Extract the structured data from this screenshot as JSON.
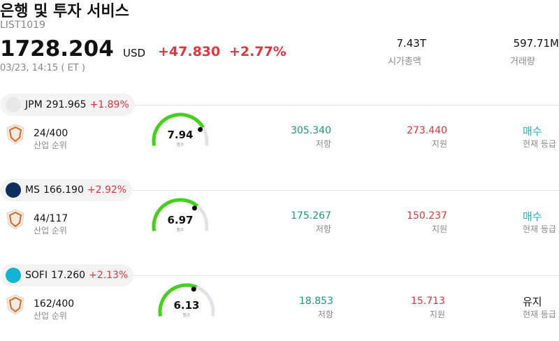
{
  "header": {
    "title": "은행 및 투자 서비스",
    "code": "LIST1019",
    "price": "1728.204",
    "currency": "USD",
    "change": "+47.830",
    "change_pct": "+2.77%",
    "time": "03/23, 14:15 ( ET )",
    "stats": [
      {
        "value": "7.43T",
        "label": "시가총액"
      },
      {
        "value": "597.71M",
        "label": "거래량"
      }
    ]
  },
  "items": [
    {
      "ticker": "JPM",
      "price": "291.965",
      "change": "+1.89%",
      "rank": "24/400",
      "rank_label": "산업 순위",
      "score": "7.94",
      "score_label": "점수",
      "resistance": "305.340",
      "resistance_label": "저항",
      "support": "273.440",
      "support_label": "지원",
      "rating": "매수",
      "rating_label": "현재 등급"
    },
    {
      "ticker": "MS",
      "price": "166.190",
      "change": "+2.92%",
      "rank": "44/117",
      "rank_label": "산업 순위",
      "score": "6.97",
      "score_label": "점수",
      "resistance": "175.267",
      "resistance_label": "저항",
      "support": "150.237",
      "support_label": "지원",
      "rating": "매수",
      "rating_label": "현재 등급"
    },
    {
      "ticker": "SOFI",
      "price": "17.260",
      "change": "+2.13%",
      "rank": "162/400",
      "rank_label": "산업 순위",
      "score": "6.13",
      "score_label": "점수",
      "resistance": "18.853",
      "resistance_label": "저항",
      "support": "15.713",
      "support_label": "지원",
      "rating": "유지",
      "rating_label": "현재 등급"
    }
  ]
}
